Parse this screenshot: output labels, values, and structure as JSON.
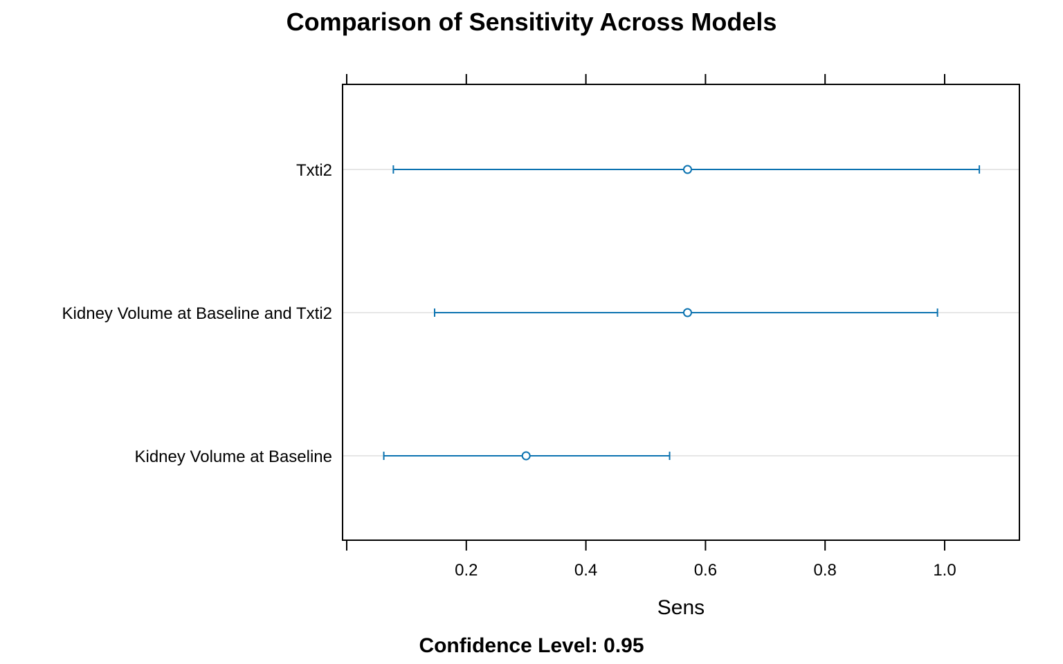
{
  "chart_data": {
    "type": "dotplot-interval",
    "title": "Comparison of Sensitivity Across Models",
    "xlabel": "Sens",
    "subtitle": "Confidence Level: 0.95",
    "xlim": [
      0.0,
      1.125
    ],
    "xticks": [
      0.2,
      0.4,
      0.6,
      0.8,
      1.0
    ],
    "xtick_labels": [
      "0.2",
      "0.4",
      "0.6",
      "0.8",
      "1.0"
    ],
    "categories": [
      "Txti2",
      "Kidney Volume at Baseline and Txti2",
      "Kidney Volume at Baseline"
    ],
    "estimates": [
      0.57,
      0.57,
      0.3
    ],
    "lower": [
      0.078,
      0.147,
      0.062
    ],
    "upper": [
      1.058,
      0.988,
      0.54
    ],
    "grid": true,
    "colors": {
      "interval": "#0a72b0",
      "grid": "#e6e6e6",
      "frame": "#000000"
    }
  }
}
